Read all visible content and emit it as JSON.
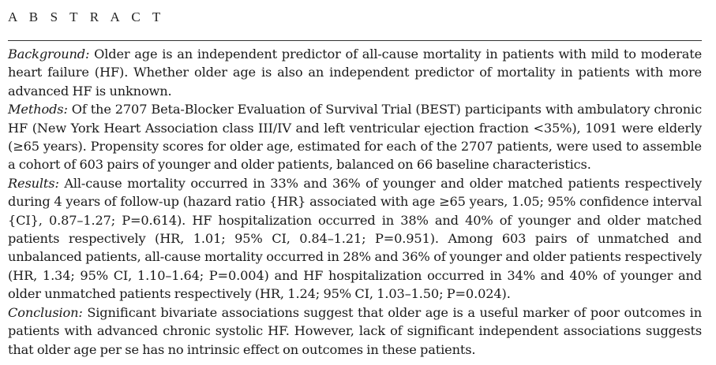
{
  "abstract": {
    "heading": "A B S T R A C T",
    "sections": [
      {
        "label": "Background:",
        "text": " Older age is an independent predictor of all-cause mortality in patients with mild to moderate heart failure (HF). Whether older age is also an independent predictor of mortality in patients with more advanced HF is unknown."
      },
      {
        "label": "Methods:",
        "text": " Of the 2707 Beta-Blocker Evaluation of Survival Trial (BEST) participants with ambulatory chronic HF (New York Heart Association class III/IV and left ventricular ejection fraction <35%), 1091 were elderly (≥65 years). Propensity scores for older age, estimated for each of the 2707 patients, were used to assemble a cohort of 603 pairs of younger and older patients, balanced on 66 baseline characteristics."
      },
      {
        "label": "Results:",
        "text": " All-cause mortality occurred in 33% and 36% of younger and older matched patients respectively during 4 years of follow-up (hazard ratio {HR} associated with age ≥65 years, 1.05; 95% confidence interval {CI}, 0.87–1.27; P=0.614). HF hospitalization occurred in 38% and 40% of younger and older matched patients respectively (HR, 1.01; 95% CI, 0.84–1.21; P=0.951). Among 603 pairs of unmatched and unbalanced patients, all-cause mortality occurred in 28% and 36% of younger and older patients respectively (HR, 1.34; 95% CI, 1.10–1.64; P=0.004) and HF hospitalization occurred in 34% and 40% of younger and older unmatched patients respectively (HR, 1.24; 95% CI, 1.03–1.50; P=0.024)."
      },
      {
        "label": "Conclusion:",
        "text": " Significant bivariate associations suggest that older age is a useful marker of poor outcomes in patients with advanced chronic systolic HF. However, lack of significant independent associations suggests that older age per se has no intrinsic effect on outcomes in these patients."
      }
    ]
  }
}
